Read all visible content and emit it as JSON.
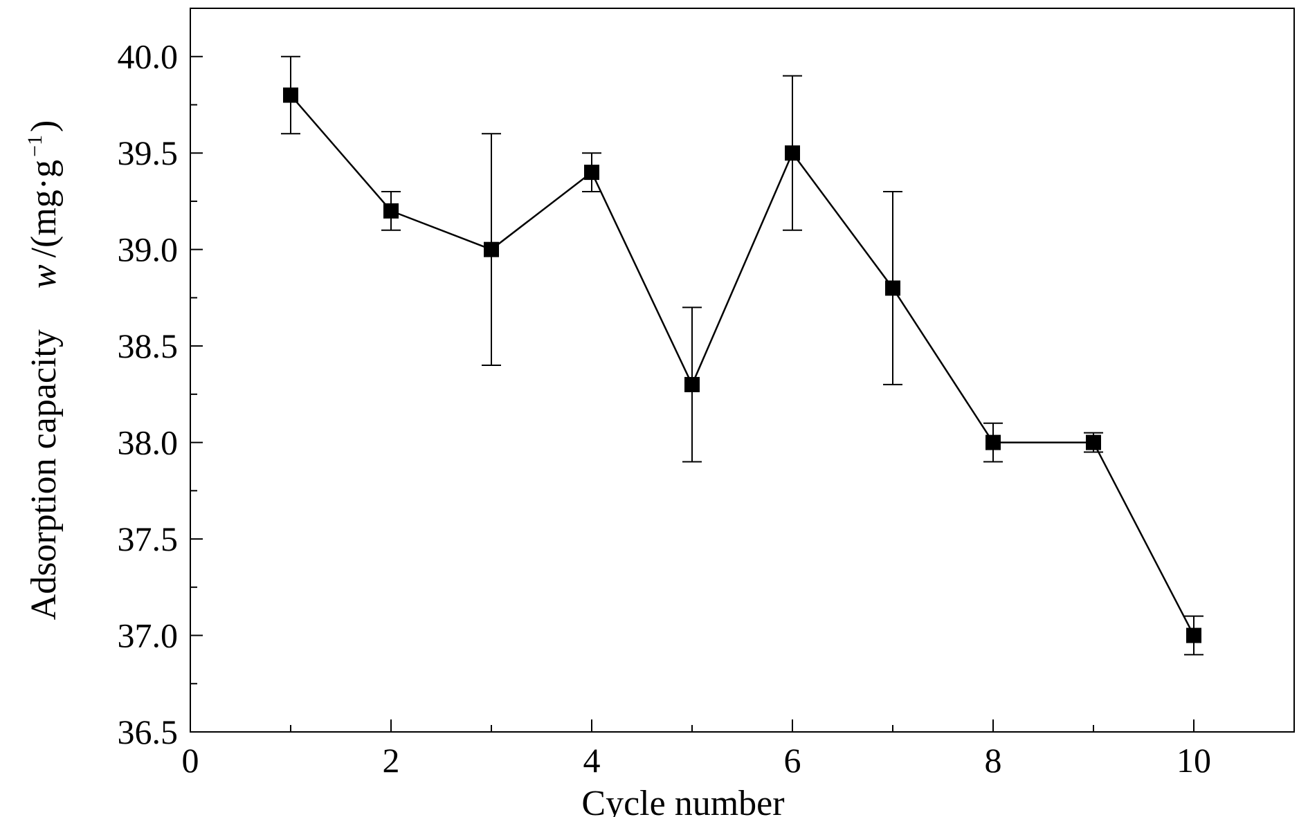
{
  "chart_data": {
    "type": "line",
    "xlabel": "Cycle number",
    "ylabel": {
      "quantity": "Adsorption capacity",
      "symbol": "w",
      "unit_open": "/(mg·g",
      "unit_sup": "−1",
      "unit_close": ")"
    },
    "xlim": [
      0,
      11
    ],
    "ylim": [
      36.5,
      40.25
    ],
    "x_major_ticks": [
      0,
      2,
      4,
      6,
      8,
      10
    ],
    "x_tick_labels": [
      "0",
      "2",
      "4",
      "6",
      "8",
      "10"
    ],
    "x_minor_ticks": [
      1,
      3,
      5,
      7,
      9
    ],
    "y_major_ticks": [
      36.5,
      37.0,
      37.5,
      38.0,
      38.5,
      39.0,
      39.5,
      40.0
    ],
    "y_tick_labels": [
      "36.5",
      "37.0",
      "37.5",
      "38.0",
      "38.5",
      "39.0",
      "39.5",
      "40.0"
    ],
    "y_minor_ticks": [
      36.75,
      37.25,
      37.75,
      38.25,
      38.75,
      39.25,
      39.75
    ],
    "grid": false,
    "marker": "square",
    "color": "#000000",
    "series": [
      {
        "x": [
          1,
          2,
          3,
          4,
          5,
          6,
          7,
          8,
          9,
          10
        ],
        "y": [
          39.8,
          39.2,
          39.0,
          39.4,
          38.3,
          39.5,
          38.8,
          38.0,
          38.0,
          37.0
        ],
        "error": [
          0.2,
          0.1,
          0.6,
          0.1,
          0.4,
          0.4,
          0.5,
          0.1,
          0.05,
          0.1
        ]
      }
    ]
  }
}
